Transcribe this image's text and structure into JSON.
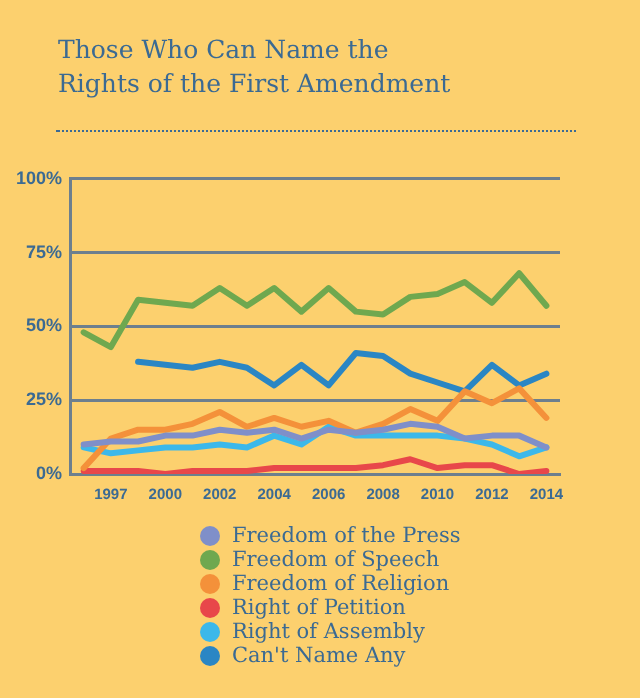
{
  "chart_data": {
    "type": "line",
    "title": "Those Who Can Name the Rights of the First Amendment",
    "categories": [
      null,
      "1997",
      null,
      "2000",
      null,
      "2002",
      null,
      "2004",
      null,
      "2006",
      null,
      "2008",
      null,
      "2010",
      null,
      "2012",
      null,
      "2014"
    ],
    "series": [
      {
        "name": "Freedom of the Press",
        "color": "#7f8fc9",
        "values": [
          10,
          11,
          11,
          13,
          13,
          15,
          14,
          15,
          12,
          15,
          14,
          15,
          17,
          16,
          12,
          13,
          13,
          9
        ]
      },
      {
        "name": "Freedom of Speech",
        "color": "#6fa84f",
        "values": [
          48,
          43,
          59,
          58,
          57,
          63,
          57,
          63,
          55,
          63,
          55,
          54,
          60,
          61,
          65,
          58,
          68,
          57
        ]
      },
      {
        "name": "Freedom of Religion",
        "color": "#f4913a",
        "values": [
          2,
          12,
          15,
          15,
          17,
          21,
          16,
          19,
          16,
          18,
          14,
          17,
          22,
          18,
          28,
          24,
          29,
          19
        ]
      },
      {
        "name": "Right of Petition",
        "color": "#e8474a",
        "values": [
          1,
          1,
          1,
          0,
          1,
          1,
          1,
          2,
          2,
          2,
          2,
          3,
          5,
          2,
          3,
          3,
          0,
          1
        ]
      },
      {
        "name": "Right of Assembly",
        "color": "#3cb8ea",
        "values": [
          9,
          7,
          8,
          9,
          9,
          10,
          9,
          13,
          10,
          16,
          13,
          13,
          13,
          13,
          12,
          10,
          6,
          9
        ]
      },
      {
        "name": "Can't Name Any",
        "color": "#2a86c4",
        "values": [
          null,
          null,
          38,
          37,
          36,
          38,
          36,
          30,
          37,
          30,
          41,
          40,
          34,
          31,
          28,
          37,
          30,
          34
        ]
      }
    ],
    "ylim": [
      0,
      100
    ],
    "yticks": [
      {
        "value": 0,
        "label": "0%"
      },
      {
        "value": 25,
        "label": "25%"
      },
      {
        "value": 50,
        "label": "50%"
      },
      {
        "value": 75,
        "label": "75%"
      },
      {
        "value": 100,
        "label": "100%"
      }
    ],
    "grid": "y",
    "legend": "bottom right",
    "marker": "none",
    "line_style": "solid"
  }
}
